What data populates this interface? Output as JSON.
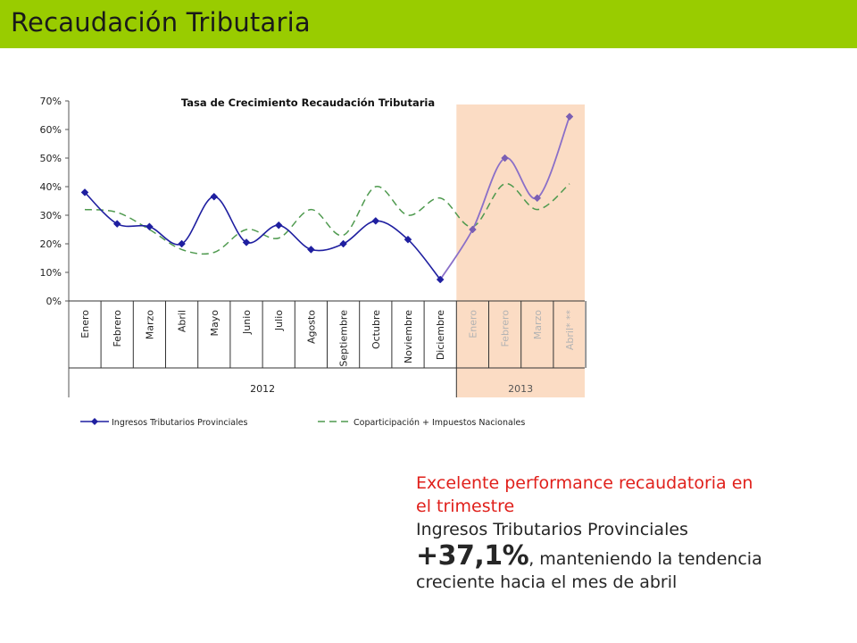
{
  "header": {
    "title": "Recaudación Tributaria"
  },
  "chart_data": {
    "type": "line",
    "title": "Tasa de Crecimiento Recaudación Tributaria",
    "categories": [
      "Enero",
      "Febrero",
      "Marzo",
      "Abril",
      "Mayo",
      "Junio",
      "Julio",
      "Agosto",
      "Septiembre",
      "Octubre",
      "Noviembre",
      "Diciembre",
      "Enero",
      "Febrero",
      "Marzo",
      "Abril* **"
    ],
    "groups": [
      {
        "label": "2012",
        "count": 12
      },
      {
        "label": "2013",
        "count": 4,
        "highlight": true
      }
    ],
    "ylim": [
      0,
      0.7
    ],
    "yticks": [
      {
        "value": 0,
        "label": "0%"
      },
      {
        "value": 0.1,
        "label": "10%"
      },
      {
        "value": 0.2,
        "label": "20%"
      },
      {
        "value": 0.3,
        "label": "30%"
      },
      {
        "value": 0.4,
        "label": "40%"
      },
      {
        "value": 0.5,
        "label": "50%"
      },
      {
        "value": 0.6,
        "label": "60%"
      },
      {
        "value": 0.7,
        "label": "70%"
      }
    ],
    "series": [
      {
        "name": "Ingresos Tributarios Provinciales",
        "style": "solid-marker",
        "color": "#1f1fa0",
        "color_highlight": "#8a6fc8",
        "values": [
          0.38,
          0.27,
          0.26,
          0.2,
          0.365,
          0.205,
          0.265,
          0.18,
          0.2,
          0.28,
          0.215,
          0.075,
          0.25,
          0.5,
          0.36,
          0.645
        ]
      },
      {
        "name": "Coparticipación + Impuestos Nacionales",
        "style": "dashed",
        "color": "#4f9a4f",
        "values": [
          0.32,
          0.31,
          0.25,
          0.18,
          0.17,
          0.25,
          0.22,
          0.32,
          0.23,
          0.4,
          0.3,
          0.36,
          0.26,
          0.41,
          0.32,
          0.41
        ]
      }
    ],
    "highlight_color": "#fbdcc4",
    "grid": false,
    "legend": "bottom"
  },
  "caption": {
    "line1": "Excelente performance recaudatoria en",
    "line2": "el trimestre",
    "line3": "Ingresos Tributarios Provinciales",
    "big_value": "+37,1%",
    "line4_rest": ", manteniendo la tendencia",
    "line5": "creciente hacia el mes de abril"
  }
}
